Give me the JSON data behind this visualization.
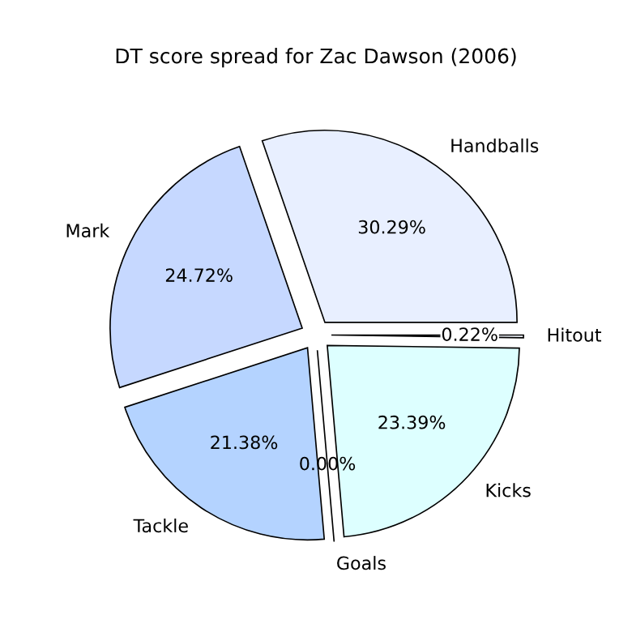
{
  "chart_data": {
    "type": "pie",
    "title": "DT score spread for Zac Dawson (2006)",
    "categories": [
      "Handballs",
      "Mark",
      "Tackle",
      "Goals",
      "Kicks",
      "Hitout"
    ],
    "values": [
      30.29,
      24.72,
      21.38,
      0.0,
      23.39,
      0.22
    ],
    "value_labels": [
      "30.29%",
      "24.72%",
      "21.38%",
      "0.00%",
      "23.39%",
      "0.22%"
    ],
    "colors": [
      "#e8efff",
      "#c6d8ff",
      "#b4d3ff",
      "#ccffff",
      "#ddffff",
      "#f4f8ff"
    ]
  }
}
